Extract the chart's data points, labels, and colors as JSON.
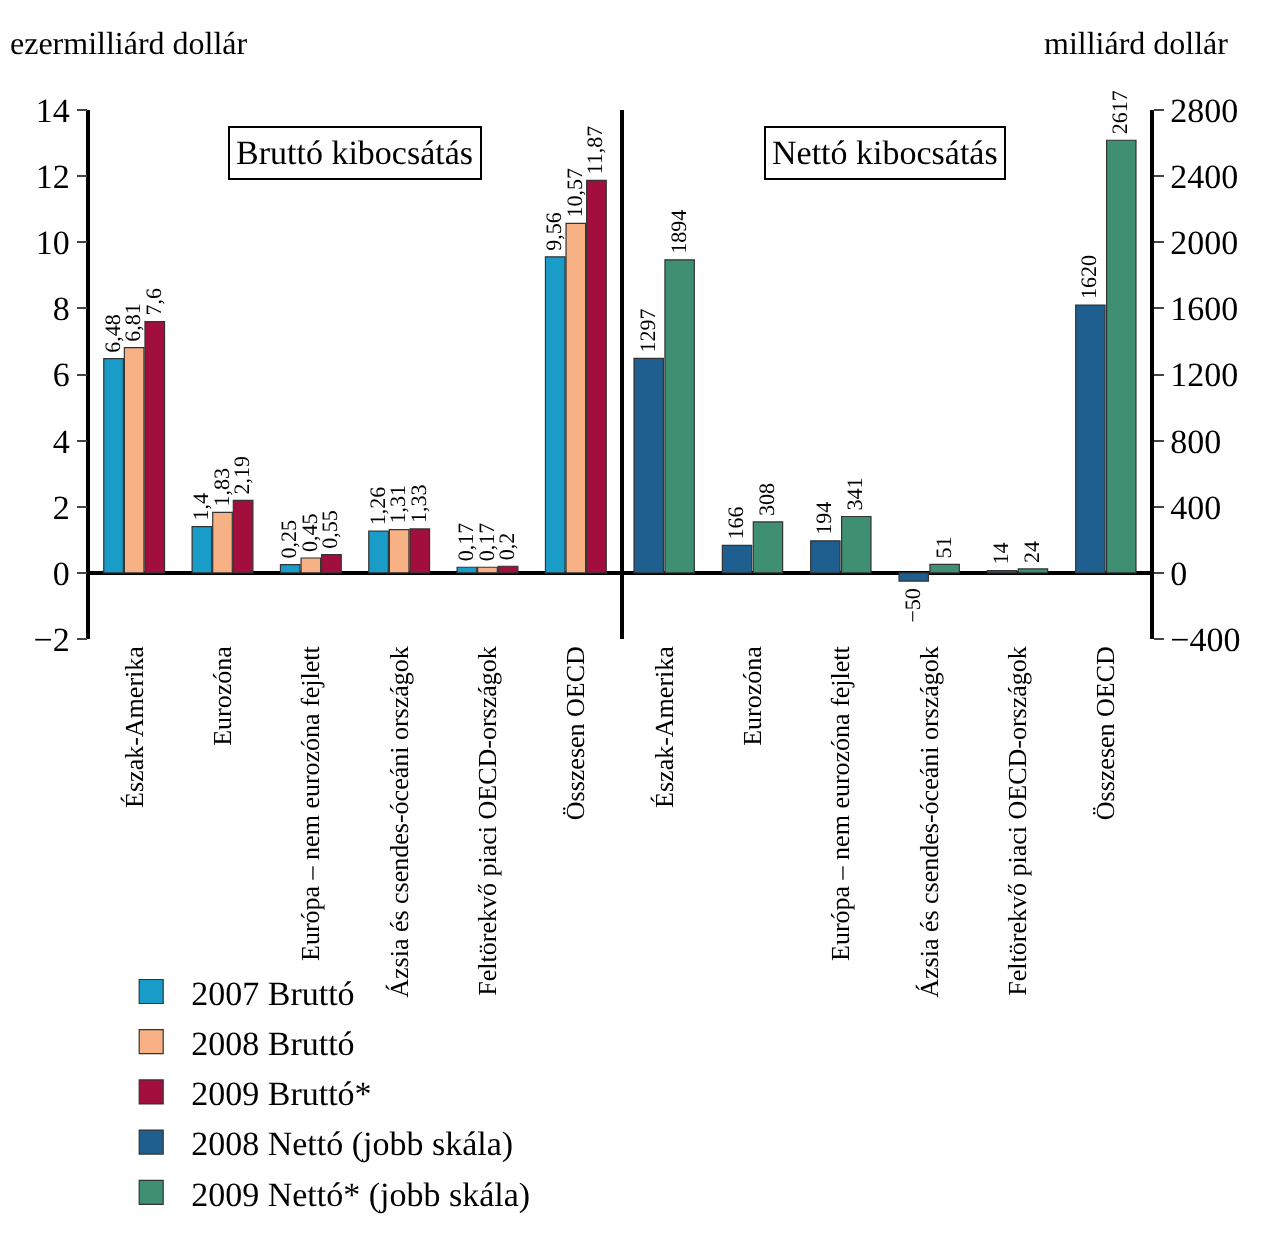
{
  "chart_data": [
    {
      "type": "bar",
      "title": "Bruttó kibocsátás",
      "ylabel": "ezermilliárd dollár",
      "legend": "bottom",
      "categories": [
        "Észak-Amerika",
        "Eurozóna",
        "Európa – nem eurozóna fejlett",
        "Ázsia és csendes-óceáni országok",
        "Feltörekvő piaci OECD-országok",
        "Összesen OECD"
      ],
      "ylim": [
        -2,
        14
      ],
      "yticks": [
        {
          "value": -2,
          "label": "−2"
        },
        0,
        2,
        4,
        6,
        8,
        10,
        12,
        14
      ],
      "series": [
        {
          "name": "2007 Bruttó",
          "color": "#1a9cc8",
          "values": [
            6.48,
            1.4,
            0.25,
            1.26,
            0.17,
            9.56
          ],
          "value_labels": [
            "6,48",
            "1,4",
            "0,25",
            "1,26",
            "0,17",
            "9,56"
          ]
        },
        {
          "name": "2008 Bruttó",
          "color": "#f7b185",
          "values": [
            6.81,
            1.83,
            0.45,
            1.31,
            0.17,
            10.57
          ],
          "value_labels": [
            "6,81",
            "1,83",
            "0,45",
            "1,31",
            "0,17",
            "10,57"
          ]
        },
        {
          "name": "2009 Bruttó*",
          "color": "#a30f3c",
          "values": [
            7.6,
            2.19,
            0.55,
            1.33,
            0.2,
            11.87
          ],
          "value_labels": [
            "7,6",
            "2,19",
            "0,55",
            "1,33",
            "0,2",
            "11,87"
          ]
        }
      ]
    },
    {
      "type": "bar",
      "title": "Nettó kibocsátás",
      "ylabel": "milliárd dollár",
      "legend": "bottom",
      "categories": [
        "Észak-Amerika",
        "Eurozóna",
        "Európa – nem eurozóna fejlett",
        "Ázsia és csendes-óceáni országok",
        "Feltörekvő piaci OECD-országok",
        "Összesen OECD"
      ],
      "ylim": [
        -400,
        2800
      ],
      "yticks": [
        {
          "value": -400,
          "label": "−400"
        },
        0,
        400,
        800,
        1200,
        1600,
        2000,
        2400,
        2800
      ],
      "series": [
        {
          "name": "2008 Nettó (jobb skála)",
          "color": "#1f5f8f",
          "values": [
            1297,
            166,
            194,
            -50,
            14,
            1620
          ],
          "value_labels": [
            "1297",
            "166",
            "194",
            "−50",
            "14",
            "1620"
          ]
        },
        {
          "name": "2009 Nettó* (jobb skála)",
          "color": "#3f8f72",
          "values": [
            1894,
            308,
            341,
            51,
            24,
            2617
          ],
          "value_labels": [
            "1894",
            "308",
            "341",
            "51",
            "24",
            "2617"
          ]
        }
      ]
    }
  ]
}
